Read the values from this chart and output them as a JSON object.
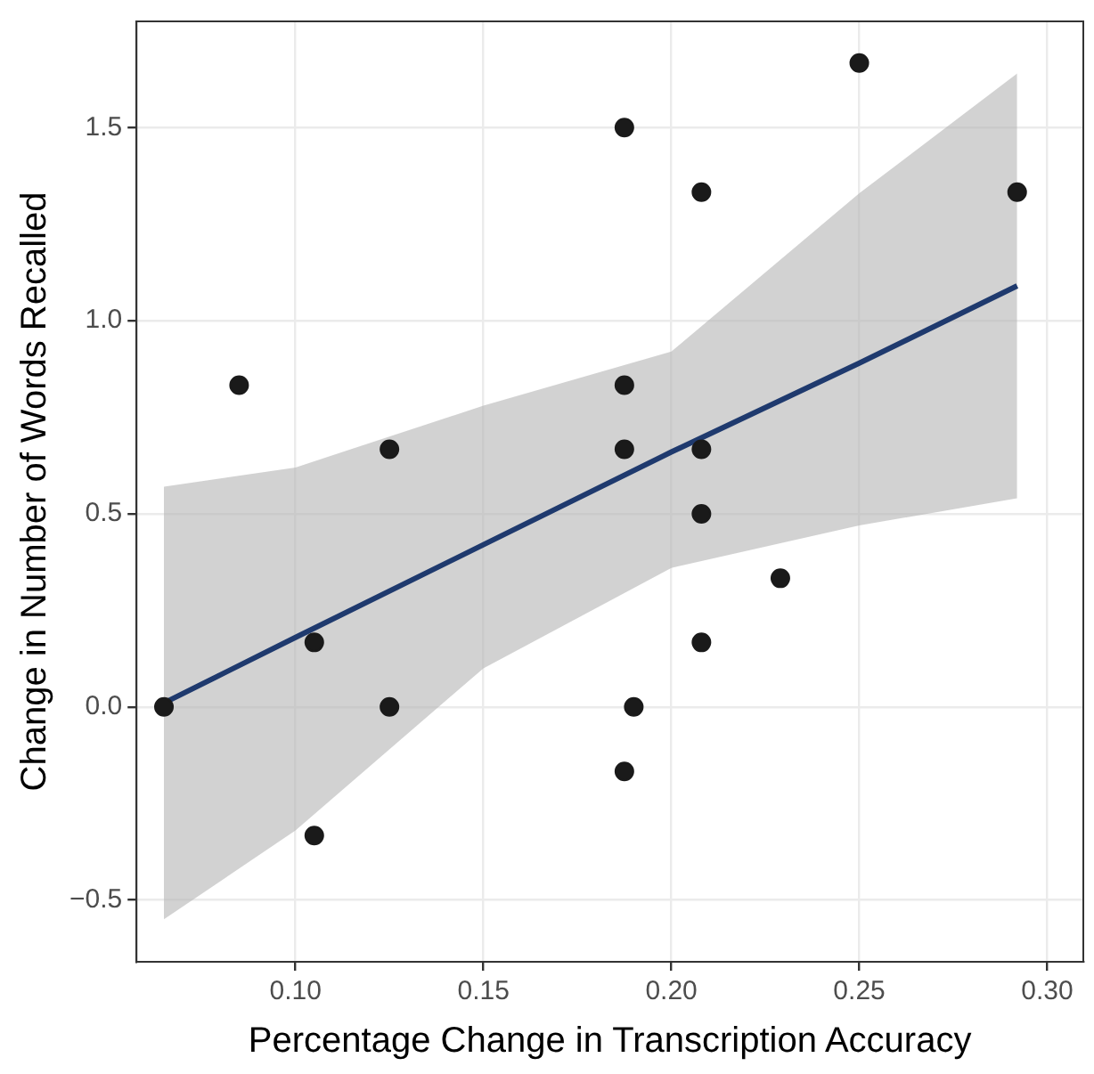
{
  "chart_data": {
    "type": "scatter",
    "xlabel": "Percentage Change in Transcription Accuracy",
    "ylabel": "Change in Number of Words Recalled",
    "xlim": [
      0.0577,
      0.3096
    ],
    "ylim": [
      -0.66,
      1.775
    ],
    "xticks": [
      {
        "value": 0.1,
        "label": "0.10"
      },
      {
        "value": 0.15,
        "label": "0.15"
      },
      {
        "value": 0.2,
        "label": "0.20"
      },
      {
        "value": 0.25,
        "label": "0.25"
      },
      {
        "value": 0.3,
        "label": "0.30"
      }
    ],
    "yticks": [
      {
        "value": -0.5,
        "label": "−0.5"
      },
      {
        "value": 0,
        "label": "0.0"
      },
      {
        "value": 0.5,
        "label": "0.5"
      },
      {
        "value": 1,
        "label": "1.0"
      },
      {
        "value": 1.5,
        "label": "1.5"
      }
    ],
    "grid": true,
    "series": [
      {
        "type": "scatter",
        "marker": "circle",
        "color": "#1a1a1a",
        "x": [
          0.065,
          0.085,
          0.105,
          0.105,
          0.125,
          0.125,
          0.1875,
          0.1875,
          0.1875,
          0.1875,
          0.19,
          0.208,
          0.208,
          0.208,
          0.208,
          0.229,
          0.25,
          0.292
        ],
        "values": [
          0,
          0.833,
          0.167,
          -0.333,
          0.667,
          0,
          1.5,
          0.833,
          0.667,
          -0.167,
          0,
          1.333,
          0.667,
          0.5,
          0.167,
          0.333,
          1.667,
          1.333
        ]
      },
      {
        "type": "line",
        "color": "#1f3a6e",
        "x": [
          0.065,
          0.1,
          0.15,
          0.2,
          0.25,
          0.292
        ],
        "values": [
          0.01,
          0.18,
          0.42,
          0.66,
          0.89,
          1.09
        ],
        "lower": [
          -0.55,
          -0.32,
          0.1,
          0.36,
          0.47,
          0.54
        ],
        "upper": [
          0.57,
          0.62,
          0.78,
          0.92,
          1.33,
          1.64
        ]
      }
    ]
  }
}
